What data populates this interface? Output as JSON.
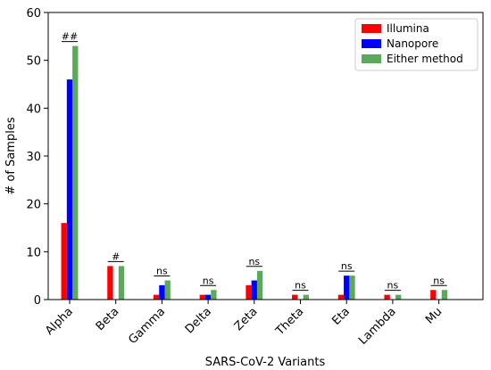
{
  "chart_data": {
    "type": "bar",
    "xlabel": "SARS-CoV-2 Variants",
    "ylabel": "# of Samples",
    "ylim": [
      0,
      60
    ],
    "yticks": [
      0,
      10,
      20,
      30,
      40,
      50,
      60
    ],
    "categories": [
      "Alpha",
      "Beta",
      "Gamma",
      "Delta",
      "Zeta",
      "Theta",
      "Eta",
      "Lambda",
      "Mu"
    ],
    "series": [
      {
        "name": "Illumina",
        "color": "#ff0000",
        "values": [
          16,
          7,
          1,
          1,
          3,
          1,
          1,
          1,
          2
        ]
      },
      {
        "name": "Nanopore",
        "color": "#0000ff",
        "values": [
          46,
          0,
          3,
          1,
          4,
          0,
          5,
          0,
          0
        ]
      },
      {
        "name": "Either method",
        "color": "#5aaa5a",
        "values": [
          53,
          7,
          4,
          2,
          6,
          1,
          5,
          1,
          2
        ]
      }
    ],
    "annotations": [
      "##",
      "#",
      "ns",
      "ns",
      "ns",
      "ns",
      "ns",
      "ns",
      "ns"
    ],
    "legend_position": "top-right",
    "grid": false
  }
}
